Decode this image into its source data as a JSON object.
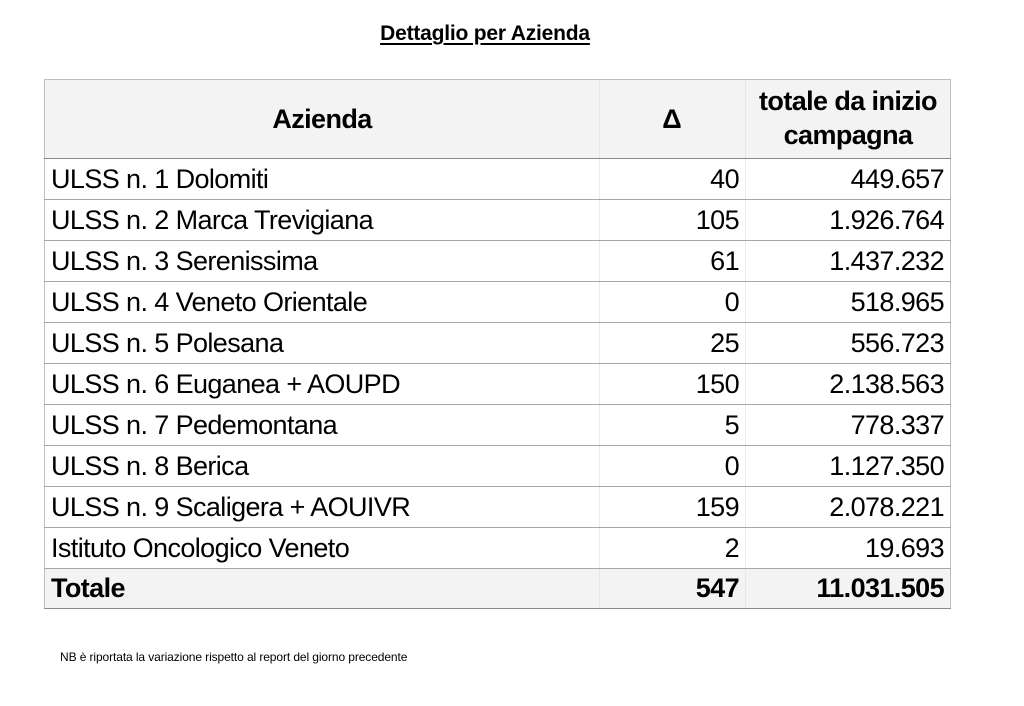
{
  "title": "Dettaglio per Azienda",
  "table": {
    "headers": {
      "azienda": "Azienda",
      "delta": "Δ",
      "totale": "totale da inizio campagna"
    },
    "rows": [
      {
        "azienda": "ULSS n. 1 Dolomiti",
        "delta": "40",
        "totale": "449.657"
      },
      {
        "azienda": "ULSS n. 2 Marca Trevigiana",
        "delta": "105",
        "totale": "1.926.764"
      },
      {
        "azienda": "ULSS n. 3 Serenissima",
        "delta": "61",
        "totale": "1.437.232"
      },
      {
        "azienda": "ULSS n. 4 Veneto Orientale",
        "delta": "0",
        "totale": "518.965"
      },
      {
        "azienda": "ULSS n. 5 Polesana",
        "delta": "25",
        "totale": "556.723"
      },
      {
        "azienda": "ULSS n. 6 Euganea + AOUPD",
        "delta": "150",
        "totale": "2.138.563"
      },
      {
        "azienda": "ULSS n. 7 Pedemontana",
        "delta": "5",
        "totale": "778.337"
      },
      {
        "azienda": "ULSS n. 8 Berica",
        "delta": "0",
        "totale": "1.127.350"
      },
      {
        "azienda": "ULSS n. 9 Scaligera + AOUIVR",
        "delta": "159",
        "totale": "2.078.221"
      },
      {
        "azienda": "Istituto Oncologico Veneto",
        "delta": "2",
        "totale": "19.693"
      }
    ],
    "total": {
      "azienda": "Totale",
      "delta": "547",
      "totale": "11.031.505"
    }
  },
  "footnote": "NB è riportata la variazione rispetto al report del giorno precedente"
}
